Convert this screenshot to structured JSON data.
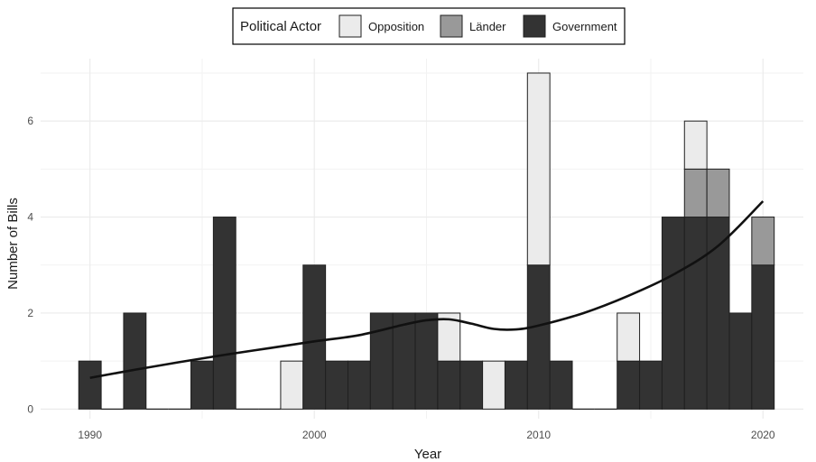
{
  "chart_data": {
    "type": "bar",
    "stacked": true,
    "xlabel": "Year",
    "ylabel": "Number of Bills",
    "x": [
      1990,
      1991,
      1992,
      1993,
      1994,
      1995,
      1996,
      1997,
      1998,
      1999,
      2000,
      2001,
      2002,
      2003,
      2004,
      2005,
      2006,
      2007,
      2008,
      2009,
      2010,
      2011,
      2012,
      2013,
      2014,
      2015,
      2016,
      2017,
      2018,
      2019,
      2020
    ],
    "xlim": [
      1987.8,
      2021.8
    ],
    "ylim": [
      -0.2,
      7.3
    ],
    "xticks": [
      "1990",
      "2000",
      "2010",
      "2020"
    ],
    "xtick_values": [
      1990,
      2000,
      2010,
      2020
    ],
    "yticks": [
      "0",
      "2",
      "4",
      "6"
    ],
    "ytick_values": [
      0,
      2,
      4,
      6
    ],
    "grid": true,
    "legend": {
      "title": "Political Actor",
      "position": "top",
      "entries": [
        "Opposition",
        "Länder",
        "Government"
      ]
    },
    "series": [
      {
        "name": "Government",
        "color": "#333333",
        "values": [
          1,
          0,
          2,
          0,
          0,
          1,
          4,
          0,
          0,
          0,
          3,
          1,
          1,
          2,
          2,
          2,
          1,
          1,
          0,
          1,
          3,
          1,
          0,
          0,
          1,
          1,
          4,
          4,
          4,
          2,
          3
        ]
      },
      {
        "name": "Länder",
        "color": "#999999",
        "values": [
          0,
          0,
          0,
          0,
          0,
          0,
          0,
          0,
          0,
          0,
          0,
          0,
          0,
          0,
          0,
          0,
          0,
          0,
          0,
          0,
          0,
          0,
          0,
          0,
          0,
          0,
          0,
          1,
          1,
          0,
          1
        ]
      },
      {
        "name": "Opposition",
        "color": "#ebebeb",
        "values": [
          0,
          0,
          0,
          0,
          0,
          0,
          0,
          0,
          0,
          1,
          0,
          0,
          0,
          0,
          0,
          0,
          1,
          0,
          1,
          0,
          4,
          0,
          0,
          0,
          1,
          0,
          0,
          1,
          0,
          0,
          0
        ]
      }
    ],
    "trend_line": {
      "color": "#111111",
      "points": [
        [
          1990,
          0.65
        ],
        [
          1992,
          0.82
        ],
        [
          1994,
          0.98
        ],
        [
          1996,
          1.13
        ],
        [
          1998,
          1.27
        ],
        [
          2000,
          1.41
        ],
        [
          2002,
          1.54
        ],
        [
          2004,
          1.76
        ],
        [
          2005,
          1.85
        ],
        [
          2006,
          1.87
        ],
        [
          2007,
          1.78
        ],
        [
          2008,
          1.67
        ],
        [
          2009,
          1.66
        ],
        [
          2010,
          1.74
        ],
        [
          2012,
          2.0
        ],
        [
          2014,
          2.36
        ],
        [
          2016,
          2.8
        ],
        [
          2018,
          3.4
        ],
        [
          2020,
          4.33
        ]
      ]
    }
  }
}
